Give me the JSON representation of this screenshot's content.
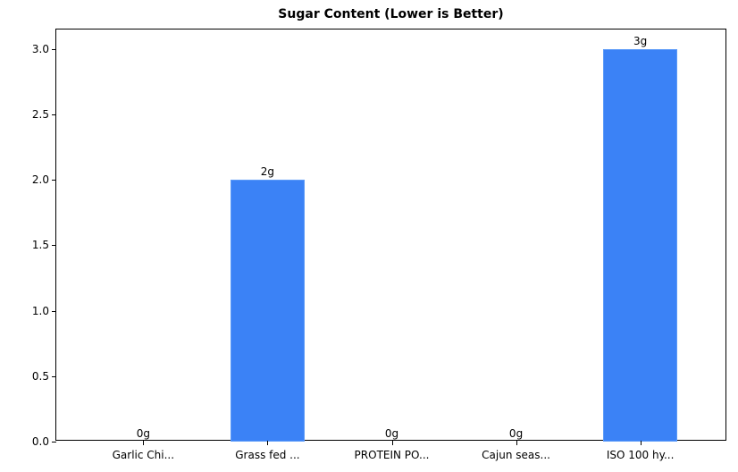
{
  "chart_data": {
    "type": "bar",
    "title": "Sugar Content (Lower is Better)",
    "xlabel": "",
    "ylabel": "",
    "categories": [
      "Garlic Chi...",
      "Grass fed ...",
      "PROTEIN PO...",
      "Cajun seas...",
      "ISO 100 hy..."
    ],
    "values": [
      0,
      2,
      0,
      0,
      3
    ],
    "value_labels": [
      "0g",
      "2g",
      "0g",
      "0g",
      "3g"
    ],
    "ylim": [
      0,
      3.15
    ],
    "yticks": [
      "0.0",
      "0.5",
      "1.0",
      "1.5",
      "2.0",
      "2.5",
      "3.0"
    ],
    "ytick_values": [
      0,
      0.5,
      1.0,
      1.5,
      2.0,
      2.5,
      3.0
    ],
    "grid": false,
    "legend": null,
    "bar_color": "#3b82f6"
  }
}
